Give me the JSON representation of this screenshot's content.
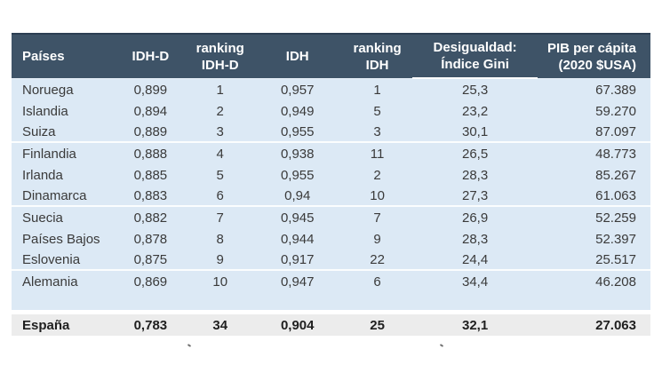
{
  "chart_data": {
    "type": "table",
    "title": "",
    "columns": [
      "Países",
      "IDH-D",
      "ranking\nIDH-D",
      "IDH",
      "ranking\nIDH",
      "Desigualdad:\nÍndice Gini",
      "PIB per cápita\n(2020 $USA)"
    ],
    "rows": [
      [
        "Noruega",
        "0,899",
        "1",
        "0,957",
        "1",
        "25,3",
        "67.389"
      ],
      [
        "Islandia",
        "0,894",
        "2",
        "0,949",
        "5",
        "23,2",
        "59.270"
      ],
      [
        "Suiza",
        "0,889",
        "3",
        "0,955",
        "3",
        "30,1",
        "87.097"
      ],
      [
        "Finlandia",
        "0,888",
        "4",
        "0,938",
        "11",
        "26,5",
        "48.773"
      ],
      [
        "Irlanda",
        "0,885",
        "5",
        "0,955",
        "2",
        "28,3",
        "85.267"
      ],
      [
        "Dinamarca",
        "0,883",
        "6",
        "0,94",
        "10",
        "27,3",
        "61.063"
      ],
      [
        "Suecia",
        "0,882",
        "7",
        "0,945",
        "7",
        "26,9",
        "52.259"
      ],
      [
        "Países Bajos",
        "0,878",
        "8",
        "0,944",
        "9",
        "28,3",
        "52.397"
      ],
      [
        "Eslovenia",
        "0,875",
        "9",
        "0,917",
        "22",
        "24,4",
        "25.517"
      ],
      [
        "Alemania",
        "0,869",
        "10",
        "0,947",
        "6",
        "34,4",
        "46.208"
      ]
    ],
    "summary_row": [
      "España",
      "0,783",
      "34",
      "0,904",
      "25",
      "32,1",
      "27.063"
    ],
    "row_groups": [
      3,
      3,
      3,
      1
    ],
    "layout_hints": {
      "header_bg": "#3E5367",
      "header_text": "#FFFFFF",
      "row_bg": "#DCE9F5",
      "summary_row_bg": "#ECECEC",
      "body_text": "#3A3A3A",
      "group_separator": "#FBFDFE"
    }
  }
}
